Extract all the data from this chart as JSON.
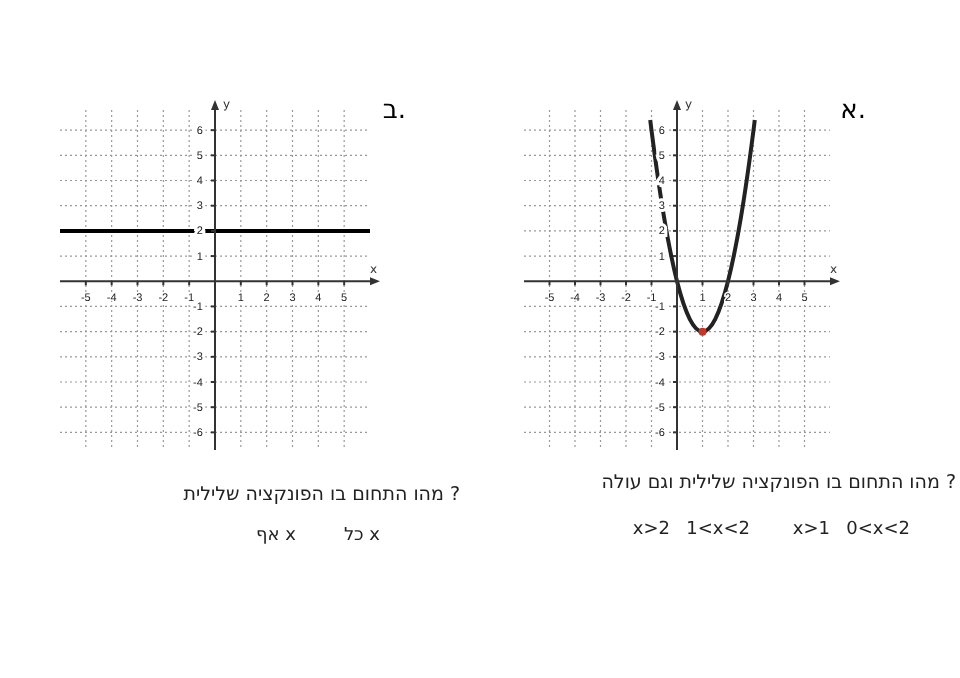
{
  "chart_data": [
    {
      "type": "line",
      "title": "א.",
      "xlabel": "x",
      "ylabel": "y",
      "xlim": [
        -6,
        6
      ],
      "ylim": [
        -6.7,
        6.8
      ],
      "xticks": [
        -5,
        -4,
        -3,
        -2,
        -1,
        1,
        2,
        3,
        4,
        5
      ],
      "yticks": [
        -6,
        -5,
        -4,
        -3,
        -2,
        -1,
        1,
        2,
        3,
        4,
        5,
        6
      ],
      "grid": true,
      "series": [
        {
          "type": "line",
          "color": "#222222",
          "x": [
            -1.05,
            -1,
            -0.5,
            0,
            0.5,
            1,
            1.5,
            2,
            2.5,
            3,
            3.05
          ],
          "values": [
            6.4,
            6,
            2.5,
            0,
            -1.5,
            -2,
            -1.5,
            0,
            2.5,
            6,
            6.4
          ]
        },
        {
          "type": "scatter",
          "color": "#c0392b",
          "x": [
            1
          ],
          "values": [
            -2
          ]
        }
      ],
      "annotations": [
        "מהו התחום בו הפונקציה שלילית וגם עולה ?",
        "0<x<2",
        "x>1",
        "1<x<2",
        "x>2"
      ]
    },
    {
      "type": "line",
      "title": "ב.",
      "xlabel": "x",
      "ylabel": "y",
      "xlim": [
        -6,
        6
      ],
      "ylim": [
        -6.7,
        6.8
      ],
      "xticks": [
        -5,
        -4,
        -3,
        -2,
        -1,
        1,
        2,
        3,
        4,
        5
      ],
      "yticks": [
        -6,
        -5,
        -4,
        -3,
        -2,
        -1,
        1,
        2,
        3,
        4,
        5,
        6
      ],
      "grid": true,
      "series": [
        {
          "type": "line",
          "color": "#000000",
          "x": [
            -6,
            6
          ],
          "values": [
            2,
            2
          ]
        }
      ],
      "annotations": [
        "מהו התחום בו הפונקציה שלילית ?",
        "כל x",
        "אף x"
      ]
    }
  ]
}
